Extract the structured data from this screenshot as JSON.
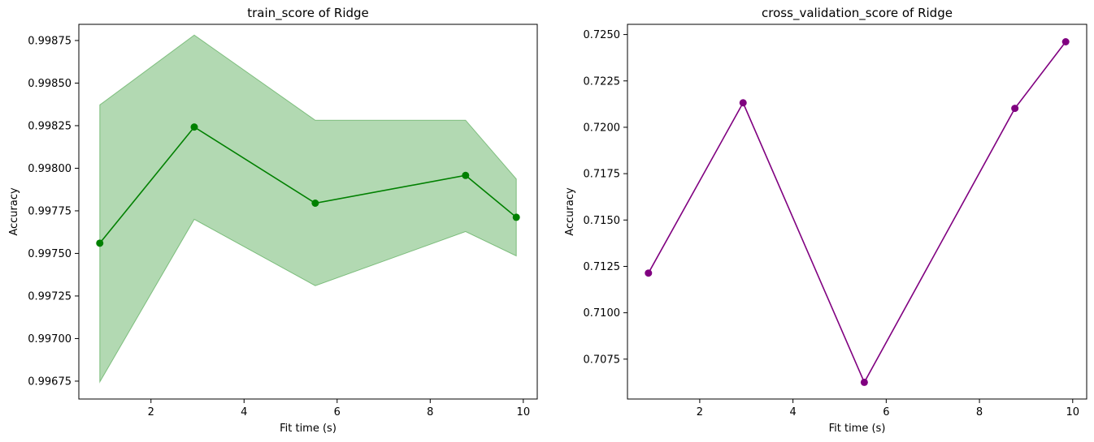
{
  "chart_data": [
    {
      "type": "line",
      "title": "train_score of Ridge",
      "xlabel": "Fit time (s)",
      "ylabel": "Accuracy",
      "xlim": [
        0.45,
        10.3
      ],
      "ylim": [
        0.996645,
        0.998845
      ],
      "xticks": [
        2,
        4,
        6,
        8,
        10
      ],
      "xtick_labels": [
        "2",
        "4",
        "6",
        "8",
        "10"
      ],
      "yticks": [
        0.99675,
        0.997,
        0.99725,
        0.9975,
        0.99775,
        0.998,
        0.99825,
        0.9985,
        0.99875
      ],
      "ytick_labels": [
        "0.99675",
        "0.99700",
        "0.99725",
        "0.99750",
        "0.99775",
        "0.99800",
        "0.99825",
        "0.99850",
        "0.99875"
      ],
      "grid": false,
      "series": [
        {
          "x": [
            0.9,
            2.93,
            5.53,
            8.76,
            9.85
          ],
          "y": [
            0.99756,
            0.998242,
            0.997795,
            0.997958,
            0.997712
          ],
          "y_lower": [
            0.996745,
            0.9977,
            0.99731,
            0.997628,
            0.997485
          ],
          "y_upper": [
            0.998372,
            0.998782,
            0.998282,
            0.998282,
            0.997937
          ],
          "color": "#008000",
          "fill_color": "#008000",
          "fill_opacity": 0.3,
          "marker": "circle"
        }
      ]
    },
    {
      "type": "line",
      "title": "cross_validation_score of Ridge",
      "xlabel": "Fit time (s)",
      "ylabel": "Accuracy",
      "xlim": [
        0.45,
        10.3
      ],
      "ylim": [
        0.70535,
        0.72555
      ],
      "xticks": [
        2,
        4,
        6,
        8,
        10
      ],
      "xtick_labels": [
        "2",
        "4",
        "6",
        "8",
        "10"
      ],
      "yticks": [
        0.7075,
        0.71,
        0.7125,
        0.715,
        0.7175,
        0.72,
        0.7225,
        0.725
      ],
      "ytick_labels": [
        "0.7075",
        "0.7100",
        "0.7125",
        "0.7150",
        "0.7175",
        "0.7200",
        "0.7225",
        "0.7250"
      ],
      "grid": false,
      "series": [
        {
          "x": [
            0.9,
            2.93,
            5.53,
            8.76,
            9.85
          ],
          "y": [
            0.71214,
            0.72132,
            0.70625,
            0.72102,
            0.72461
          ],
          "color": "#800080",
          "marker": "circle"
        }
      ]
    }
  ]
}
